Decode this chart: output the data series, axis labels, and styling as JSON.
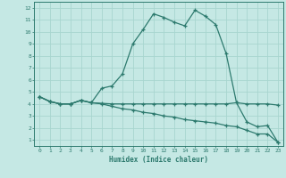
{
  "xlabel": "Humidex (Indice chaleur)",
  "xlim": [
    -0.5,
    23.5
  ],
  "ylim": [
    0.5,
    12.5
  ],
  "xticks": [
    0,
    1,
    2,
    3,
    4,
    5,
    6,
    7,
    8,
    9,
    10,
    11,
    12,
    13,
    14,
    15,
    16,
    17,
    18,
    19,
    20,
    21,
    22,
    23
  ],
  "yticks": [
    1,
    2,
    3,
    4,
    5,
    6,
    7,
    8,
    9,
    10,
    11,
    12
  ],
  "bg_color": "#c5e8e4",
  "line_color": "#2d7a6e",
  "grid_color": "#a8d5cf",
  "series2_x": [
    0,
    1,
    2,
    3,
    4,
    5,
    6,
    7,
    8,
    9,
    10,
    11,
    12,
    13,
    14,
    15,
    16,
    17,
    18,
    19,
    20,
    21,
    22,
    23
  ],
  "series2_y": [
    4.6,
    4.2,
    4.0,
    4.0,
    4.3,
    4.1,
    5.3,
    5.5,
    6.5,
    9.0,
    10.2,
    11.5,
    11.2,
    10.8,
    10.5,
    11.8,
    11.3,
    10.6,
    8.2,
    4.1,
    2.5,
    2.1,
    2.2,
    0.8
  ],
  "series1_x": [
    0,
    1,
    2,
    3,
    4,
    5,
    6,
    7,
    8,
    9,
    10,
    11,
    12,
    13,
    14,
    15,
    16,
    17,
    18,
    19,
    20,
    21,
    22,
    23
  ],
  "series1_y": [
    4.6,
    4.2,
    4.0,
    4.0,
    4.3,
    4.1,
    4.05,
    4.0,
    4.0,
    4.0,
    4.0,
    4.0,
    4.0,
    4.0,
    4.0,
    4.0,
    4.0,
    4.0,
    4.0,
    4.1,
    4.0,
    4.0,
    4.0,
    3.9
  ],
  "series3_x": [
    0,
    1,
    2,
    3,
    4,
    5,
    6,
    7,
    8,
    9,
    10,
    11,
    12,
    13,
    14,
    15,
    16,
    17,
    18,
    19,
    20,
    21,
    22,
    23
  ],
  "series3_y": [
    4.6,
    4.2,
    4.0,
    4.0,
    4.3,
    4.1,
    4.0,
    3.8,
    3.6,
    3.5,
    3.3,
    3.2,
    3.0,
    2.9,
    2.7,
    2.6,
    2.5,
    2.4,
    2.2,
    2.1,
    1.8,
    1.5,
    1.5,
    0.8
  ]
}
